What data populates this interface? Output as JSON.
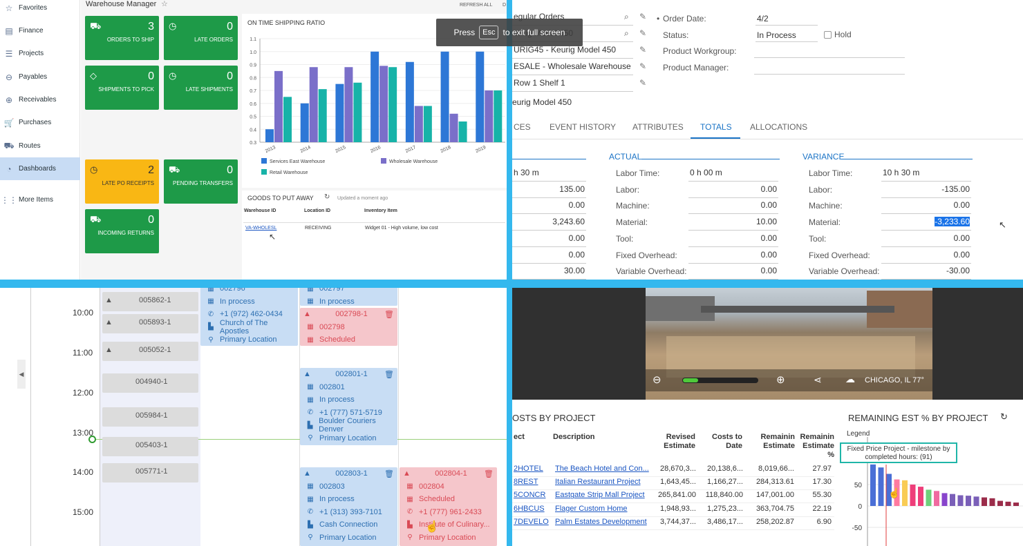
{
  "sidebar": {
    "items": [
      {
        "label": "Favorites",
        "icon": "star-icon"
      },
      {
        "label": "Finance",
        "icon": "finance-icon"
      },
      {
        "label": "Projects",
        "icon": "projects-icon"
      },
      {
        "label": "Payables",
        "icon": "payables-icon"
      },
      {
        "label": "Receivables",
        "icon": "receivables-icon"
      },
      {
        "label": "Purchases",
        "icon": "cart-icon"
      },
      {
        "label": "Routes",
        "icon": "truck-icon"
      },
      {
        "label": "Dashboards",
        "icon": "dashboard-icon"
      },
      {
        "label": "More Items",
        "icon": "grid-icon"
      }
    ]
  },
  "warehouse": {
    "title": "Warehouse Manager",
    "refresh": "REFRESH ALL",
    "refresh_tail": "D",
    "tiles": [
      {
        "value": "3",
        "label": "ORDERS TO SHIP"
      },
      {
        "value": "0",
        "label": "LATE ORDERS"
      },
      {
        "value": "0",
        "label": "SHIPMENTS TO PICK"
      },
      {
        "value": "0",
        "label": "LATE SHIPMENTS"
      },
      {
        "value": "2",
        "label": "LATE PO RECEIPTS"
      },
      {
        "value": "0",
        "label": "PENDING TRANSFERS"
      },
      {
        "value": "0",
        "label": "INCOMING RETURNS"
      }
    ],
    "goods": {
      "title": "GOODS TO PUT AWAY",
      "updated": "Updated a moment ago",
      "headers": [
        "Warehouse ID",
        "Location ID",
        "Inventory Item"
      ],
      "row": [
        "VA-WHOLESL",
        "RECEIVING",
        "Widget 01 - High volume, low cost"
      ]
    }
  },
  "chart_data": [
    {
      "type": "bar",
      "title": "ON TIME SHIPPING RATIO",
      "categories": [
        "2013",
        "2014",
        "2015",
        "2016",
        "2017",
        "2018",
        "2019"
      ],
      "ylim": [
        0.3,
        1.1
      ],
      "yticks": [
        "0.3",
        "0.4",
        "0.5",
        "0.6",
        "0.7",
        "0.8",
        "0.9",
        "1.0",
        "1.1"
      ],
      "series": [
        {
          "name": "Services East Warehouse",
          "color": "#2d77d6",
          "values": [
            0.4,
            0.6,
            0.75,
            1.0,
            0.92,
            1.0,
            1.0
          ]
        },
        {
          "name": "Wholesale Warehouse",
          "color": "#7a6fc9",
          "values": [
            0.85,
            0.88,
            0.88,
            0.89,
            0.58,
            0.52,
            0.7
          ]
        },
        {
          "name": "Retail Warehouse",
          "color": "#17b3a8",
          "values": [
            0.65,
            0.71,
            0.76,
            0.88,
            0.58,
            0.46,
            0.7
          ]
        }
      ]
    },
    {
      "type": "bar",
      "title": "REMAINING EST % BY PROJECT",
      "legend_label": "Legend",
      "yticks": [
        "50",
        "0",
        "-50"
      ],
      "tooltip": "Fixed Price Project - milestone by completed hours: (91)",
      "values": [
        97,
        90,
        75,
        62,
        60,
        50,
        45,
        38,
        35,
        30,
        28,
        25,
        24,
        22,
        20,
        18,
        12,
        10,
        8
      ],
      "colors": [
        "#4a6fd6",
        "#4a6fd6",
        "#4a6fd6",
        "#ff7aa0",
        "#f9cc55",
        "#ee3e7a",
        "#ee3e7a",
        "#6dd07a",
        "#f06aa0",
        "#8844cc",
        "#7a5fb8",
        "#7a5fb8",
        "#7a5fb8",
        "#7a5fb8",
        "#9b2c4a",
        "#9b2c4a",
        "#9b2c4a",
        "#9b2c4a",
        "#9b2c4a"
      ]
    }
  ],
  "fullscreen": {
    "press": "Press",
    "key": "Esc",
    "rest": "to exit full screen"
  },
  "order": {
    "left_values": [
      "egular Orders",
      "eurig Model 450",
      "URIG45 - Keurig Model 450",
      "ESALE - Wholesale Warehouse",
      "Row 1 Shelf 1",
      "eurig Model 450"
    ],
    "order_date_label": "Order Date:",
    "order_date": "4/2",
    "status_label": "Status:",
    "status": "In Process",
    "hold": "Hold",
    "workgroup_label": "Product Workgroup:",
    "manager_label": "Product Manager:",
    "tabs": [
      "CES",
      "EVENT HISTORY",
      "ATTRIBUTES",
      "TOTALS",
      "ALLOCATIONS"
    ],
    "actual_title": "ACTUAL",
    "variance_title": "VARIANCE",
    "left_col": [
      "h 30 m",
      "135.00",
      "0.00",
      "3,243.60",
      "0.00",
      "0.00",
      "30.00"
    ],
    "labels": [
      "Labor Time:",
      "Labor:",
      "Machine:",
      "Material:",
      "Tool:",
      "Fixed Overhead:",
      "Variable Overhead:"
    ],
    "actual": [
      "0 h 00 m",
      "0.00",
      "0.00",
      "10.00",
      "0.00",
      "0.00",
      "0.00"
    ],
    "variance": [
      "10 h 30 m",
      "-135.00",
      "0.00",
      "-3,233.60",
      "0.00",
      "0.00",
      "-30.00"
    ]
  },
  "schedule": {
    "times": [
      "10:00",
      "11:00",
      "12:00",
      "13:00",
      "14:00",
      "15:00"
    ],
    "gray": [
      "005862-1",
      "005893-1",
      "005052-1",
      "004940-1",
      "005984-1",
      "005403-1",
      "005771-1"
    ],
    "col1": {
      "id": "002796",
      "status": "In process",
      "phone": "+1 (972) 462-0434",
      "name": "Church of The Apostles",
      "loc": "Primary Location"
    },
    "col2a": {
      "id": "002797",
      "status": "In process"
    },
    "col2b": {
      "hdr": "002798-1",
      "id": "002798",
      "status": "Scheduled"
    },
    "col2c": {
      "hdr": "002801-1",
      "id": "002801",
      "status": "In process",
      "phone": "+1 (777) 571-5719",
      "name": "Boulder Couriers Denver",
      "loc": "Primary Location"
    },
    "col2d": {
      "hdr": "002803-1",
      "id": "002803",
      "status": "In process",
      "phone": "+1 (313) 393-7101",
      "name": "Cash Connection",
      "loc": "Primary Location"
    },
    "col3": {
      "hdr": "002804-1",
      "id": "002804",
      "status": "Scheduled",
      "phone": "+1 (777) 961-2433",
      "name": "Institute of Culinary...",
      "loc": "Primary Location"
    }
  },
  "camera": {
    "location": "CHICAGO, IL 77°"
  },
  "costs": {
    "title": "OSTS BY PROJECT",
    "headers": [
      "ect",
      "Description",
      "Revised Estimate",
      "Costs to Date",
      "Remainin Estimate",
      "Remainin Estimate %"
    ],
    "rows": [
      [
        "2HOTEL",
        "The Beach Hotel and Con...",
        "28,670,3...",
        "20,138,6...",
        "8,019,66...",
        "27.97"
      ],
      [
        "8REST",
        "Italian Restaurant Project",
        "1,643,45...",
        "1,166,27...",
        "284,313.61",
        "17.30"
      ],
      [
        "5CONCR",
        "Eastgate Strip Mall Project",
        "265,841.00",
        "118,840.00",
        "147,001.00",
        "55.30"
      ],
      [
        "6HBCUS",
        "Flager Custom Home",
        "1,948,93...",
        "1,275,23...",
        "363,704.75",
        "22.19"
      ],
      [
        "7DEVELO",
        "Palm Estates Development",
        "3,744,37...",
        "3,486,17...",
        "258,202.87",
        "6.90"
      ]
    ]
  }
}
